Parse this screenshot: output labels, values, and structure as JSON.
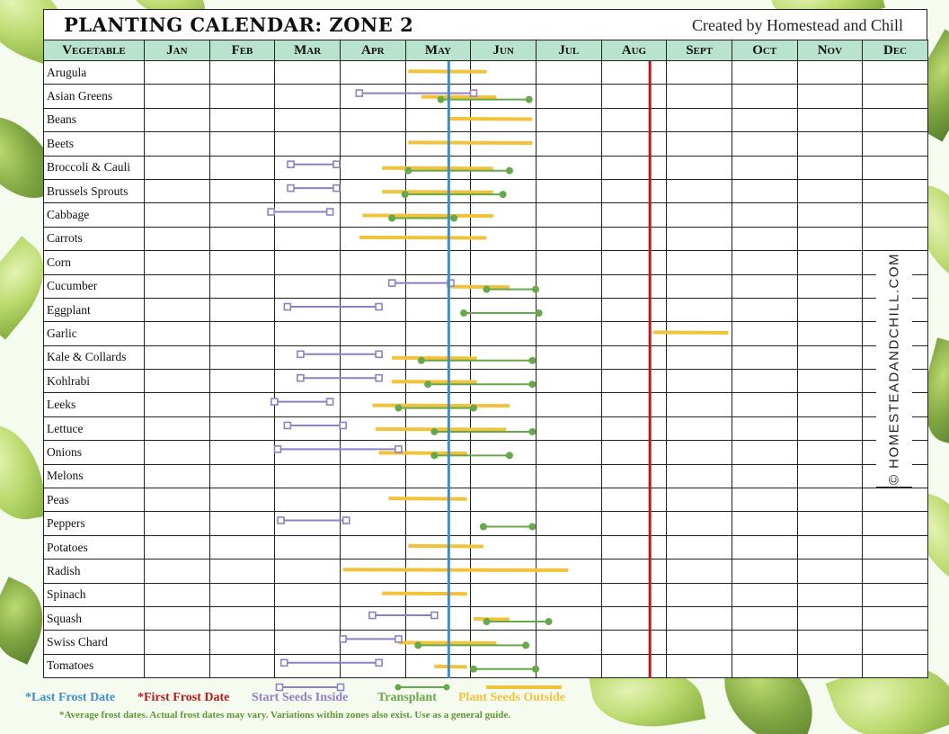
{
  "header": {
    "title": "PLANTING CALENDAR: ZONE 2",
    "credit": "Created by Homestead and Chill"
  },
  "watermark": "© HOMESTEADANDCHILL.COM",
  "table": {
    "first_col_header": "Vegetable",
    "months": [
      "Jan",
      "Feb",
      "Mar",
      "Apr",
      "May",
      "Jun",
      "Jul",
      "Aug",
      "Sept",
      "Oct",
      "Nov",
      "Dec"
    ]
  },
  "frost": {
    "last_frost_month": 5.67,
    "first_frost_month": 8.75
  },
  "colors": {
    "header_bg": "#b9e3cf",
    "start_inside": "#8f80c4",
    "transplant": "#66a84a",
    "plant_outside": "#f2c23a",
    "last_frost": "#3e8fc9",
    "first_frost": "#c0161a"
  },
  "legend": {
    "last_frost": "*Last Frost Date",
    "first_frost": "*First Frost Date",
    "start_inside": "Start Seeds Inside",
    "transplant": "Transplant",
    "plant_outside": "Plant Seeds Outside"
  },
  "disclaimer": "*Average frost dates. Actual frost dates may vary. Variations within zones also exist. Use as a general guide.",
  "vegetables": [
    {
      "name": "Arugula",
      "inside": null,
      "transplant": null,
      "outside": [
        [
          5.05,
          6.25
        ]
      ]
    },
    {
      "name": "Asian Greens",
      "inside": [
        4.3,
        6.05
      ],
      "transplant": [
        5.55,
        6.9
      ],
      "outside": [
        [
          5.25,
          6.4
        ]
      ]
    },
    {
      "name": "Beans",
      "inside": null,
      "transplant": null,
      "outside": [
        [
          5.65,
          6.95
        ]
      ]
    },
    {
      "name": "Beets",
      "inside": null,
      "transplant": null,
      "outside": [
        [
          5.05,
          6.95
        ]
      ]
    },
    {
      "name": "Broccoli & Cauli",
      "inside": [
        3.25,
        3.95
      ],
      "transplant": [
        5.05,
        6.6
      ],
      "outside": [
        [
          4.65,
          6.35
        ]
      ]
    },
    {
      "name": "Brussels Sprouts",
      "inside": [
        3.25,
        3.95
      ],
      "transplant": [
        5.0,
        6.5
      ],
      "outside": [
        [
          4.65,
          6.35
        ]
      ]
    },
    {
      "name": "Cabbage",
      "inside": [
        2.95,
        3.85
      ],
      "transplant": [
        4.8,
        5.75
      ],
      "outside": [
        [
          4.35,
          6.35
        ]
      ]
    },
    {
      "name": "Carrots",
      "inside": null,
      "transplant": null,
      "outside": [
        [
          4.3,
          6.25
        ]
      ]
    },
    {
      "name": "Corn",
      "inside": null,
      "transplant": null,
      "outside": []
    },
    {
      "name": "Cucumber",
      "inside": [
        4.8,
        5.7
      ],
      "transplant": [
        6.25,
        7.0
      ],
      "outside": [
        [
          5.65,
          6.6
        ]
      ]
    },
    {
      "name": "Eggplant",
      "inside": [
        3.2,
        4.6
      ],
      "transplant": [
        5.9,
        7.05
      ],
      "outside": []
    },
    {
      "name": "Garlic",
      "inside": null,
      "transplant": null,
      "outside": [
        [
          8.8,
          9.95
        ]
      ]
    },
    {
      "name": "Kale & Collards",
      "inside": [
        3.4,
        4.6
      ],
      "transplant": [
        5.25,
        6.95
      ],
      "outside": [
        [
          4.8,
          6.1
        ]
      ]
    },
    {
      "name": "Kohlrabi",
      "inside": [
        3.4,
        4.6
      ],
      "transplant": [
        5.35,
        6.95
      ],
      "outside": [
        [
          4.8,
          6.1
        ]
      ]
    },
    {
      "name": "Leeks",
      "inside": [
        3.0,
        3.85
      ],
      "transplant": [
        4.9,
        6.05
      ],
      "outside": [
        [
          4.5,
          6.6
        ]
      ]
    },
    {
      "name": "Lettuce",
      "inside": [
        3.2,
        4.05
      ],
      "transplant": [
        5.45,
        6.95
      ],
      "outside": [
        [
          4.55,
          6.55
        ]
      ]
    },
    {
      "name": "Onions",
      "inside": [
        3.05,
        4.9
      ],
      "transplant": [
        5.45,
        6.6
      ],
      "outside": [
        [
          4.6,
          5.95
        ]
      ]
    },
    {
      "name": "Melons",
      "inside": null,
      "transplant": null,
      "outside": []
    },
    {
      "name": "Peas",
      "inside": null,
      "transplant": null,
      "outside": [
        [
          4.75,
          5.95
        ]
      ]
    },
    {
      "name": "Peppers",
      "inside": [
        3.1,
        4.1
      ],
      "transplant": [
        6.2,
        6.95
      ],
      "outside": []
    },
    {
      "name": "Potatoes",
      "inside": null,
      "transplant": null,
      "outside": [
        [
          5.05,
          6.2
        ]
      ]
    },
    {
      "name": "Radish",
      "inside": null,
      "transplant": null,
      "outside": [
        [
          4.05,
          7.5
        ]
      ]
    },
    {
      "name": "Spinach",
      "inside": null,
      "transplant": null,
      "outside": [
        [
          4.65,
          5.95
        ]
      ]
    },
    {
      "name": "Squash",
      "inside": [
        4.5,
        5.45
      ],
      "transplant": [
        6.25,
        7.2
      ],
      "outside": [
        [
          6.05,
          6.6
        ]
      ]
    },
    {
      "name": "Swiss Chard",
      "inside": [
        4.05,
        4.9
      ],
      "transplant": [
        5.2,
        6.85
      ],
      "outside": [
        [
          4.9,
          6.4
        ]
      ]
    },
    {
      "name": "Tomatoes",
      "inside": [
        3.15,
        4.6
      ],
      "transplant": [
        6.05,
        7.0
      ],
      "outside": [
        [
          5.45,
          5.95
        ]
      ]
    }
  ]
}
